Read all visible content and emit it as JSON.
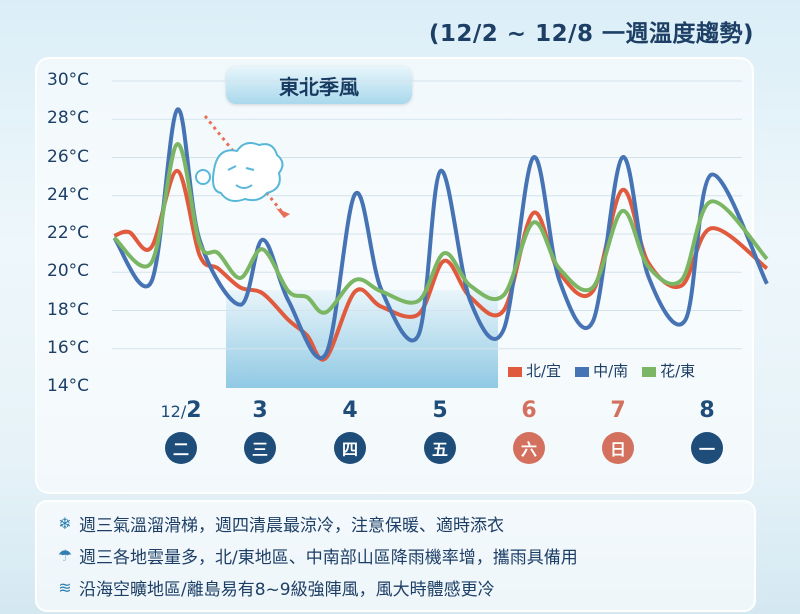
{
  "header": {
    "title": "(12/2 ~ 12/8 一週溫度趨勢)"
  },
  "badge": "東北季風",
  "colors": {
    "north": "#e05a3e",
    "central_south": "#4673b4",
    "east": "#7ab663",
    "weekday": "#1e4d7a",
    "weekend": "#d4715e"
  },
  "days": [
    {
      "date_prefix": "12/",
      "date": "2",
      "dow": "二",
      "weekend": false
    },
    {
      "date_prefix": "",
      "date": "3",
      "dow": "三",
      "weekend": false
    },
    {
      "date_prefix": "",
      "date": "4",
      "dow": "四",
      "weekend": false
    },
    {
      "date_prefix": "",
      "date": "5",
      "dow": "五",
      "weekend": false
    },
    {
      "date_prefix": "",
      "date": "6",
      "dow": "六",
      "weekend": true
    },
    {
      "date_prefix": "",
      "date": "7",
      "dow": "日",
      "weekend": true
    },
    {
      "date_prefix": "",
      "date": "8",
      "dow": "一",
      "weekend": false
    }
  ],
  "notes": [
    {
      "icon": "snowflake-icon",
      "glyph": "❄",
      "text": "週三氣溫溜滑梯，週四清晨最涼冷，注意保暖、適時添衣"
    },
    {
      "icon": "umbrella-icon",
      "glyph": "☂",
      "text": "週三各地雲量多，北/東地區、中南部山區降雨機率增，攜雨具備用"
    },
    {
      "icon": "wind-icon",
      "glyph": "≋",
      "text": "沿海空曠地區/離島易有8~9級強陣風，風大時體感更冷"
    }
  ],
  "chart_data": {
    "type": "line",
    "title": "",
    "xlabel": "",
    "ylabel": "",
    "ylim": [
      14,
      30
    ],
    "yticks": [
      "14°C",
      "16°C",
      "18°C",
      "20°C",
      "22°C",
      "24°C",
      "26°C",
      "28°C",
      "30°C"
    ],
    "grid": true,
    "legend": "bottom-right",
    "shaded_period": [
      "12/3",
      "12/5"
    ],
    "series": [
      {
        "name": "北/宜",
        "color": "#e05a3e",
        "points": [
          [
            "12/1 18:00",
            21.9
          ],
          [
            "12/1 22:00",
            22.1
          ],
          [
            "12/2 04:00",
            21.3
          ],
          [
            "12/2 11:00",
            25.3
          ],
          [
            "12/2 17:00",
            20.9
          ],
          [
            "12/2 22:00",
            20.2
          ],
          [
            "12/3 04:00",
            19.2
          ],
          [
            "12/3 10:00",
            18.9
          ],
          [
            "12/3 17:00",
            17.5
          ],
          [
            "12/3 22:00",
            16.7
          ],
          [
            "12/4 03:00",
            15.5
          ],
          [
            "12/4 11:00",
            19.0
          ],
          [
            "12/4 18:00",
            18.2
          ],
          [
            "12/5 04:00",
            17.8
          ],
          [
            "12/5 11:00",
            20.6
          ],
          [
            "12/5 18:00",
            18.7
          ],
          [
            "12/6 03:00",
            18.0
          ],
          [
            "12/6 11:00",
            23.1
          ],
          [
            "12/6 18:00",
            20.0
          ],
          [
            "12/7 03:00",
            19.0
          ],
          [
            "12/7 11:00",
            24.3
          ],
          [
            "12/7 18:00",
            20.5
          ],
          [
            "12/8 03:00",
            19.3
          ],
          [
            "12/8 11:00",
            22.3
          ],
          [
            "12/9 02:00",
            20.2
          ]
        ]
      },
      {
        "name": "中/南",
        "color": "#4673b4",
        "points": [
          [
            "12/1 18:00",
            21.8
          ],
          [
            "12/2 04:00",
            19.5
          ],
          [
            "12/2 11:00",
            28.5
          ],
          [
            "12/2 17:00",
            21.7
          ],
          [
            "12/3 04:00",
            18.3
          ],
          [
            "12/3 10:00",
            21.7
          ],
          [
            "12/3 17:00",
            18.5
          ],
          [
            "12/4 03:00",
            15.7
          ],
          [
            "12/4 11:00",
            24.1
          ],
          [
            "12/4 18:00",
            19.1
          ],
          [
            "12/5 04:00",
            16.7
          ],
          [
            "12/5 10:00",
            25.3
          ],
          [
            "12/5 18:00",
            18.5
          ],
          [
            "12/6 03:00",
            17.0
          ],
          [
            "12/6 11:00",
            26.0
          ],
          [
            "12/6 18:00",
            19.6
          ],
          [
            "12/7 03:00",
            17.4
          ],
          [
            "12/7 11:00",
            26.0
          ],
          [
            "12/7 18:00",
            19.8
          ],
          [
            "12/8 04:00",
            17.5
          ],
          [
            "12/8 11:00",
            25.1
          ],
          [
            "12/9 02:00",
            19.4
          ]
        ]
      },
      {
        "name": "花/東",
        "color": "#7ab663",
        "points": [
          [
            "12/1 18:00",
            21.8
          ],
          [
            "12/2 04:00",
            20.5
          ],
          [
            "12/2 11:00",
            26.7
          ],
          [
            "12/2 17:00",
            21.5
          ],
          [
            "12/2 22:00",
            21.0
          ],
          [
            "12/3 04:00",
            19.7
          ],
          [
            "12/3 10:00",
            21.2
          ],
          [
            "12/3 17:00",
            19.0
          ],
          [
            "12/3 22:00",
            18.7
          ],
          [
            "12/4 03:00",
            17.9
          ],
          [
            "12/4 11:00",
            19.6
          ],
          [
            "12/4 18:00",
            19.0
          ],
          [
            "12/5 04:00",
            18.5
          ],
          [
            "12/5 11:00",
            21.0
          ],
          [
            "12/5 18:00",
            19.3
          ],
          [
            "12/6 03:00",
            18.8
          ],
          [
            "12/6 11:00",
            22.6
          ],
          [
            "12/6 18:00",
            20.2
          ],
          [
            "12/7 03:00",
            19.2
          ],
          [
            "12/7 11:00",
            23.2
          ],
          [
            "12/7 18:00",
            20.3
          ],
          [
            "12/8 03:00",
            19.6
          ],
          [
            "12/8 11:00",
            23.7
          ],
          [
            "12/9 02:00",
            20.7
          ]
        ]
      }
    ]
  }
}
